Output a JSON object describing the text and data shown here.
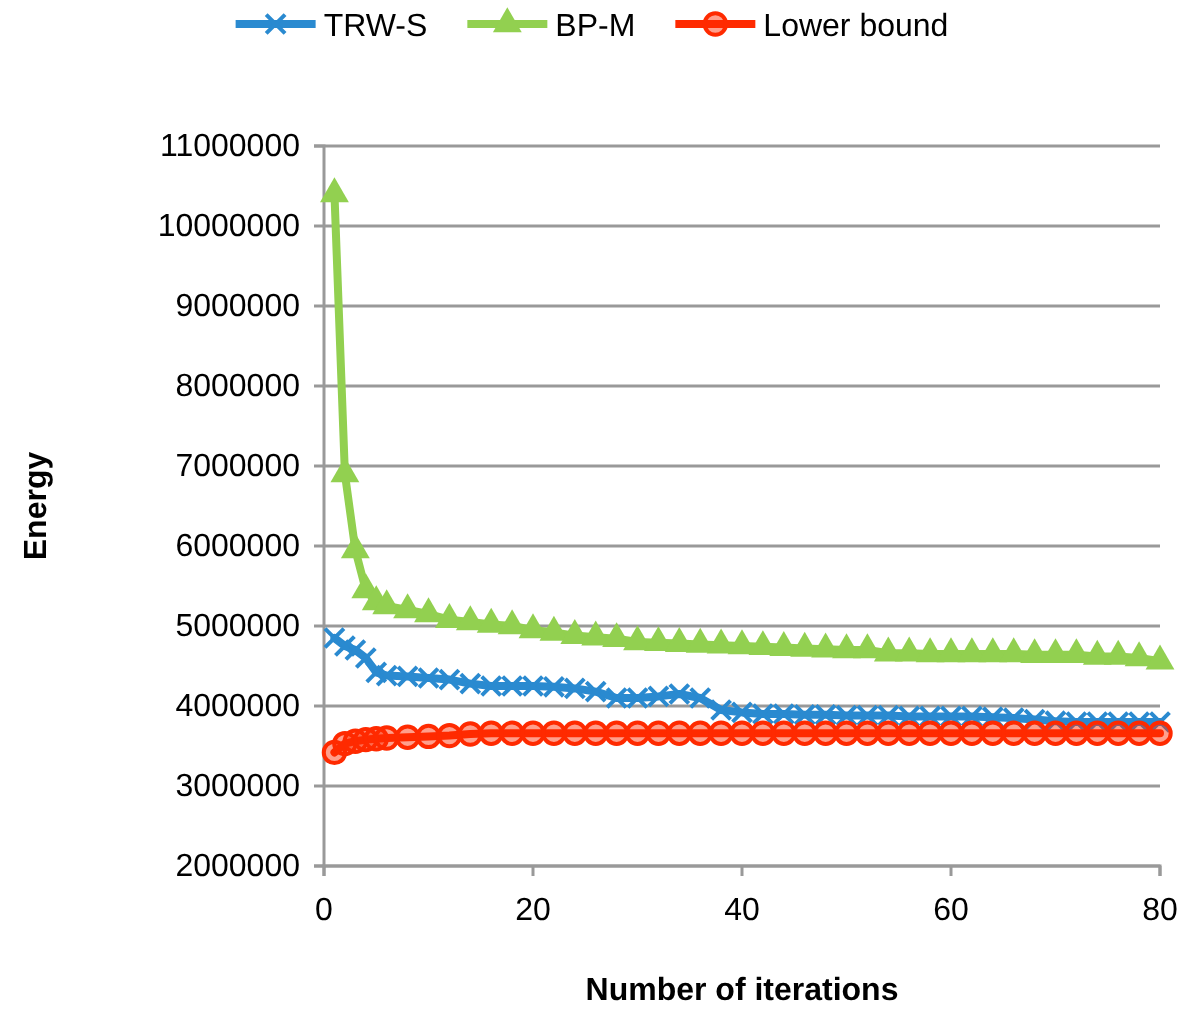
{
  "chart_data": {
    "type": "line",
    "xlabel": "Number of iterations",
    "ylabel": "Energy",
    "x": [
      1,
      2,
      3,
      4,
      5,
      6,
      8,
      10,
      12,
      14,
      16,
      18,
      20,
      22,
      24,
      26,
      28,
      30,
      32,
      34,
      36,
      38,
      40,
      42,
      44,
      46,
      48,
      50,
      52,
      54,
      56,
      58,
      60,
      62,
      64,
      66,
      68,
      70,
      72,
      74,
      76,
      78,
      80
    ],
    "series": [
      {
        "name": "TRW-S",
        "color": "#2a8ad0",
        "marker": "cross",
        "values": [
          4850000,
          4750000,
          4700000,
          4600000,
          4420000,
          4380000,
          4370000,
          4350000,
          4330000,
          4280000,
          4250000,
          4250000,
          4250000,
          4240000,
          4220000,
          4180000,
          4100000,
          4100000,
          4120000,
          4150000,
          4100000,
          3950000,
          3920000,
          3900000,
          3900000,
          3890000,
          3890000,
          3880000,
          3880000,
          3880000,
          3870000,
          3870000,
          3870000,
          3870000,
          3860000,
          3850000,
          3830000,
          3810000,
          3800000,
          3800000,
          3800000,
          3800000,
          3800000
        ]
      },
      {
        "name": "BP-M",
        "color": "#92d050",
        "marker": "triangle",
        "values": [
          10400000,
          6900000,
          5950000,
          5450000,
          5300000,
          5250000,
          5200000,
          5150000,
          5080000,
          5050000,
          5020000,
          5000000,
          4950000,
          4920000,
          4880000,
          4860000,
          4840000,
          4800000,
          4790000,
          4780000,
          4770000,
          4760000,
          4750000,
          4740000,
          4730000,
          4720000,
          4710000,
          4700000,
          4700000,
          4660000,
          4660000,
          4650000,
          4650000,
          4650000,
          4650000,
          4650000,
          4640000,
          4640000,
          4640000,
          4620000,
          4620000,
          4600000,
          4560000
        ]
      },
      {
        "name": "Lower bound",
        "color": "#ff2a00",
        "marker": "circle",
        "values": [
          3420000,
          3530000,
          3560000,
          3580000,
          3590000,
          3600000,
          3610000,
          3620000,
          3630000,
          3650000,
          3660000,
          3660000,
          3660000,
          3660000,
          3660000,
          3660000,
          3660000,
          3660000,
          3660000,
          3660000,
          3660000,
          3660000,
          3660000,
          3660000,
          3660000,
          3660000,
          3660000,
          3660000,
          3660000,
          3660000,
          3660000,
          3660000,
          3660000,
          3660000,
          3660000,
          3660000,
          3660000,
          3660000,
          3660000,
          3660000,
          3660000,
          3660000,
          3660000
        ]
      }
    ],
    "xlim": [
      0,
      80
    ],
    "xticks": [
      0,
      20,
      40,
      60,
      80
    ],
    "ylim": [
      2000000,
      11000000
    ],
    "yticks": [
      2000000,
      3000000,
      4000000,
      5000000,
      6000000,
      7000000,
      8000000,
      9000000,
      10000000,
      11000000
    ],
    "grid": "y",
    "legend": "top"
  }
}
